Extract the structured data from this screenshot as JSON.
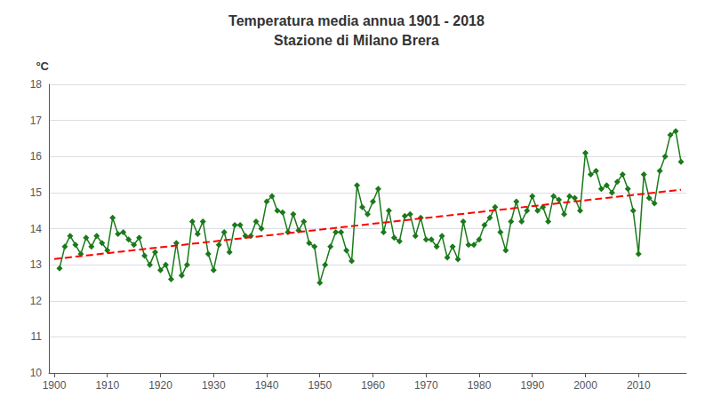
{
  "chart_data": {
    "type": "line",
    "title": "Temperatura media annua 1901 - 2018",
    "subtitle": "Stazione di Milano Brera",
    "ylabel": "°C",
    "xlim": [
      1899,
      2019
    ],
    "ylim": [
      10,
      18
    ],
    "yticks": [
      10,
      11,
      12,
      13,
      14,
      15,
      16,
      17,
      18
    ],
    "xticks": [
      1900,
      1910,
      1920,
      1930,
      1940,
      1950,
      1960,
      1970,
      1980,
      1990,
      2000,
      2010
    ],
    "grid": true,
    "x": [
      1901,
      1902,
      1903,
      1904,
      1905,
      1906,
      1907,
      1908,
      1909,
      1910,
      1911,
      1912,
      1913,
      1914,
      1915,
      1916,
      1917,
      1918,
      1919,
      1920,
      1921,
      1922,
      1923,
      1924,
      1925,
      1926,
      1927,
      1928,
      1929,
      1930,
      1931,
      1932,
      1933,
      1934,
      1935,
      1936,
      1937,
      1938,
      1939,
      1940,
      1941,
      1942,
      1943,
      1944,
      1945,
      1946,
      1947,
      1948,
      1949,
      1950,
      1951,
      1952,
      1953,
      1954,
      1955,
      1956,
      1957,
      1958,
      1959,
      1960,
      1961,
      1962,
      1963,
      1964,
      1965,
      1966,
      1967,
      1968,
      1969,
      1970,
      1971,
      1972,
      1973,
      1974,
      1975,
      1976,
      1977,
      1978,
      1979,
      1980,
      1981,
      1982,
      1983,
      1984,
      1985,
      1986,
      1987,
      1988,
      1989,
      1990,
      1991,
      1992,
      1993,
      1994,
      1995,
      1996,
      1997,
      1998,
      1999,
      2000,
      2001,
      2002,
      2003,
      2004,
      2005,
      2006,
      2007,
      2008,
      2009,
      2010,
      2011,
      2012,
      2013,
      2014,
      2015,
      2016,
      2017,
      2018
    ],
    "series": [
      {
        "color": "#1a7a1a",
        "marker": "diamond",
        "line_style": "solid",
        "values": [
          12.9,
          13.5,
          13.8,
          13.55,
          13.3,
          13.75,
          13.5,
          13.8,
          13.6,
          13.4,
          14.3,
          13.85,
          13.9,
          13.7,
          13.55,
          13.75,
          13.25,
          13.0,
          13.35,
          12.85,
          13.0,
          12.6,
          13.6,
          12.7,
          13.0,
          14.2,
          13.85,
          14.2,
          13.3,
          12.85,
          13.55,
          13.9,
          13.35,
          14.1,
          14.1,
          13.8,
          13.8,
          14.2,
          14.0,
          14.75,
          14.9,
          14.5,
          14.45,
          13.9,
          14.4,
          13.95,
          14.2,
          13.6,
          13.5,
          12.5,
          13.0,
          13.5,
          13.9,
          13.9,
          13.4,
          13.1,
          15.2,
          14.6,
          14.4,
          14.75,
          15.1,
          13.9,
          14.5,
          13.75,
          13.65,
          14.35,
          14.4,
          13.8,
          14.3,
          13.7,
          13.7,
          13.5,
          13.8,
          13.2,
          13.5,
          13.15,
          14.2,
          13.55,
          13.55,
          13.7,
          14.1,
          14.3,
          14.6,
          13.9,
          13.4,
          14.2,
          14.75,
          14.2,
          14.5,
          14.9,
          14.5,
          14.6,
          14.2,
          14.9,
          14.8,
          14.4,
          14.9,
          14.85,
          14.5,
          16.1,
          15.5,
          15.6,
          15.1,
          15.2,
          15.0,
          15.3,
          15.5,
          15.1,
          14.5,
          13.3,
          15.5,
          14.85,
          14.7,
          15.6,
          16.0,
          16.6,
          16.7,
          15.85
        ]
      },
      {
        "color": "#ff0000",
        "line_style": "dashed",
        "x": [
          1900,
          2018
        ],
        "values": [
          13.1571,
          15.0791
        ]
      }
    ]
  }
}
